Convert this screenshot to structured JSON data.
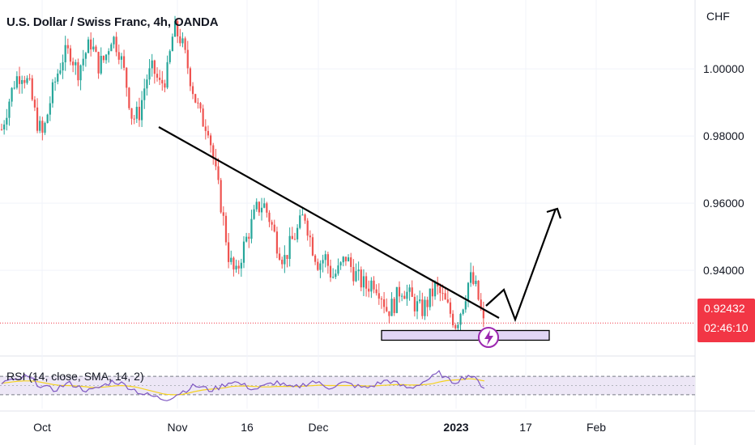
{
  "header": {
    "title": "U.S. Dollar / Swiss Franc, 4h, OANDA",
    "currency": "CHF"
  },
  "price_badge": {
    "price": "0.92432",
    "countdown": "02:46:10",
    "color": "#f23645"
  },
  "rsi": {
    "label": "RSI (14, close, SMA, 14, 2)"
  },
  "colors": {
    "up": "#26a69a",
    "down": "#ef5350",
    "rsi_line": "#7e57c2",
    "rsi_sma": "#f5d21f",
    "annotation": "#000000",
    "zone_fill": "#e1d5f5",
    "zone_border": "#000000",
    "flash_icon": "#9c27b0"
  },
  "chart_data": [
    {
      "type": "line",
      "title": "U.S. Dollar / Swiss Franc, 4h, OANDA",
      "xlabel": "",
      "ylabel": "CHF",
      "ylim": [
        0.9145,
        1.0205
      ],
      "x_tick_labels": [
        "Oct",
        "Nov",
        "16",
        "Dec",
        "2023",
        "17",
        "Feb"
      ],
      "y_tick_labels": [
        "1.00000",
        "0.98000",
        "0.96000",
        "0.94000"
      ],
      "last_price": 0.92432,
      "series": [
        {
          "values": [
            0.982,
            0.99,
            0.997,
            0.999,
            0.995,
            0.985,
            0.98,
            0.99,
            0.998,
            1.004,
            1.005,
            0.999,
            1.004,
            1.008,
            1.001,
            1.003,
            1.01,
            1.006,
            0.997,
            0.985,
            0.987,
            0.997,
            1.0,
            0.995,
            0.998,
            1.012,
            1.009,
            1.001,
            0.992,
            0.985,
            0.983,
            0.97,
            0.958,
            0.944,
            0.938,
            0.946,
            0.952,
            0.958,
            0.96,
            0.955,
            0.948,
            0.943,
            0.948,
            0.952,
            0.957,
            0.948,
            0.942,
            0.944,
            0.938,
            0.94,
            0.944,
            0.94,
            0.937,
            0.935,
            0.937,
            0.934,
            0.928,
            0.93,
            0.935,
            0.933,
            0.93,
            0.928,
            0.931,
            0.935,
            0.932,
            0.928,
            0.924,
            0.93,
            0.938,
            0.934,
            0.924
          ]
        }
      ]
    },
    {
      "type": "line",
      "title": "RSI (14, close, SMA, 14, 2)",
      "ylim": [
        0,
        100
      ],
      "bands": [
        70,
        30
      ],
      "series": [
        {
          "values": [
            55,
            62,
            58,
            70,
            64,
            52,
            45,
            40,
            48,
            55,
            50,
            42,
            38,
            45,
            52,
            60,
            55,
            48,
            40,
            32,
            28,
            24,
            20,
            26,
            34,
            42,
            50,
            46,
            40,
            44,
            52,
            60,
            54,
            48,
            42,
            46,
            52,
            58,
            50,
            44,
            48,
            54,
            60,
            52,
            46,
            50,
            56,
            52,
            48,
            44,
            50,
            56,
            62,
            55,
            48,
            44,
            52,
            60,
            68,
            78,
            62,
            58,
            66,
            74,
            60,
            46
          ]
        },
        {
          "values": [
            55,
            57,
            59,
            60,
            60,
            58,
            55,
            52,
            50,
            50,
            49,
            48,
            46,
            46,
            47,
            49,
            50,
            49,
            47,
            43,
            39,
            35,
            31,
            30,
            30,
            33,
            37,
            40,
            42,
            43,
            45,
            48,
            49,
            49,
            48,
            47,
            47,
            48,
            48,
            48,
            48,
            49,
            50,
            51,
            50,
            50,
            50,
            50,
            50,
            49,
            49,
            50,
            51,
            52,
            52,
            51,
            51,
            52,
            54,
            58,
            61,
            62,
            63,
            65,
            63,
            60
          ]
        }
      ]
    }
  ],
  "annotations": {
    "trendline": [
      [
        0.84,
        0.9845
      ],
      [
        0.935,
        0.9255
      ]
    ],
    "zone": {
      "y_top": 0.9245,
      "y_bottom": 0.9225
    }
  }
}
